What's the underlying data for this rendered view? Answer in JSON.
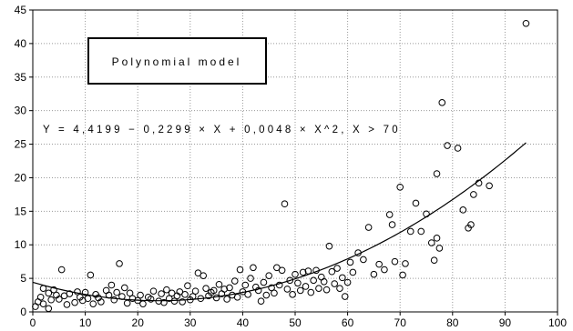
{
  "chart_data": {
    "type": "scatter",
    "title": "",
    "xlabel": "",
    "ylabel": "",
    "xlim": [
      0,
      100
    ],
    "ylim": [
      0,
      45
    ],
    "xticks": [
      0,
      10,
      20,
      30,
      40,
      50,
      60,
      70,
      80,
      90,
      100
    ],
    "yticks": [
      0,
      5,
      10,
      15,
      20,
      25,
      30,
      35,
      40,
      45
    ],
    "grid": true,
    "legend_box_text": "Polynomial model",
    "equation_text": "Y = 4,4199 − 0,2299 × X + 0,0048 × X^2, X > 70",
    "fit_curve": {
      "intercept": 4.4199,
      "linear": -0.2299,
      "quadratic": 0.0048,
      "x_range": [
        0,
        94
      ]
    },
    "series": [
      {
        "marker": "open-circle",
        "points": [
          [
            0.5,
            0.8
          ],
          [
            1,
            1.5
          ],
          [
            1.5,
            2.2
          ],
          [
            2,
            3.5
          ],
          [
            2,
            1.2
          ],
          [
            3,
            2.8
          ],
          [
            3,
            0.5
          ],
          [
            3.5,
            1.8
          ],
          [
            4,
            3.3
          ],
          [
            4.5,
            2.5
          ],
          [
            5,
            1.9
          ],
          [
            5.5,
            6.3
          ],
          [
            6,
            2.4
          ],
          [
            6.5,
            1.1
          ],
          [
            7,
            2.7
          ],
          [
            8,
            1.4
          ],
          [
            8.5,
            3.0
          ],
          [
            9,
            2.2
          ],
          [
            9.5,
            1.7
          ],
          [
            10,
            2.9
          ],
          [
            10.5,
            2.0
          ],
          [
            11,
            5.5
          ],
          [
            11.5,
            1.2
          ],
          [
            12,
            2.6
          ],
          [
            12.5,
            2.1
          ],
          [
            13,
            1.5
          ],
          [
            14,
            3.2
          ],
          [
            14.5,
            2.5
          ],
          [
            15,
            4.0
          ],
          [
            15.5,
            1.8
          ],
          [
            16,
            2.9
          ],
          [
            16.5,
            7.2
          ],
          [
            17,
            2.3
          ],
          [
            17.5,
            3.6
          ],
          [
            18,
            1.3
          ],
          [
            18.5,
            2.8
          ],
          [
            19,
            2.0
          ],
          [
            20,
            1.7
          ],
          [
            20.5,
            2.5
          ],
          [
            21,
            1.2
          ],
          [
            22,
            2.2
          ],
          [
            22.5,
            1.9
          ],
          [
            23,
            3.1
          ],
          [
            24,
            1.6
          ],
          [
            24.5,
            2.7
          ],
          [
            25,
            1.4
          ],
          [
            25.5,
            3.3
          ],
          [
            26,
            2.0
          ],
          [
            26.5,
            2.8
          ],
          [
            27,
            1.6
          ],
          [
            27.5,
            2.4
          ],
          [
            28,
            3.0
          ],
          [
            28.5,
            1.5
          ],
          [
            29,
            2.6
          ],
          [
            29.5,
            3.9
          ],
          [
            30,
            1.8
          ],
          [
            30.5,
            2.3
          ],
          [
            31,
            3.1
          ],
          [
            31.5,
            5.8
          ],
          [
            32,
            2.0
          ],
          [
            32.5,
            5.4
          ],
          [
            33,
            3.5
          ],
          [
            33.5,
            2.4
          ],
          [
            34,
            2.9
          ],
          [
            34.5,
            3.2
          ],
          [
            35,
            2.1
          ],
          [
            35.5,
            4.1
          ],
          [
            36,
            2.7
          ],
          [
            36.5,
            3.4
          ],
          [
            37,
            1.9
          ],
          [
            37.5,
            3.6
          ],
          [
            38,
            2.5
          ],
          [
            38.5,
            4.6
          ],
          [
            39,
            2.2
          ],
          [
            39.5,
            6.3
          ],
          [
            40,
            3.0
          ],
          [
            40.5,
            4.0
          ],
          [
            41,
            2.6
          ],
          [
            41.5,
            5.0
          ],
          [
            42,
            6.6
          ],
          [
            42.5,
            3.7
          ],
          [
            43,
            3.2
          ],
          [
            43.5,
            1.6
          ],
          [
            44,
            4.4
          ],
          [
            44.5,
            2.5
          ],
          [
            45,
            5.4
          ],
          [
            45.5,
            3.6
          ],
          [
            46,
            2.8
          ],
          [
            46.5,
            6.6
          ],
          [
            47,
            4.0
          ],
          [
            47.5,
            6.2
          ],
          [
            48,
            16.1
          ],
          [
            48.5,
            3.4
          ],
          [
            49,
            4.7
          ],
          [
            49.5,
            2.6
          ],
          [
            50,
            5.6
          ],
          [
            50.5,
            4.3
          ],
          [
            51,
            3.2
          ],
          [
            51.5,
            5.9
          ],
          [
            52,
            3.8
          ],
          [
            52.5,
            6.1
          ],
          [
            53,
            2.9
          ],
          [
            53.5,
            4.7
          ],
          [
            54,
            6.2
          ],
          [
            54.5,
            3.5
          ],
          [
            55,
            5.2
          ],
          [
            55.5,
            4.5
          ],
          [
            56,
            3.3
          ],
          [
            56.5,
            9.8
          ],
          [
            57,
            6.0
          ],
          [
            57.5,
            4.2
          ],
          [
            58,
            6.5
          ],
          [
            58.5,
            3.5
          ],
          [
            59,
            5.1
          ],
          [
            59.5,
            2.3
          ],
          [
            60,
            4.4
          ],
          [
            60.5,
            7.4
          ],
          [
            61,
            5.9
          ],
          [
            62,
            8.8
          ],
          [
            63,
            7.8
          ],
          [
            64,
            12.6
          ],
          [
            65,
            5.6
          ],
          [
            66,
            7.1
          ],
          [
            67,
            6.3
          ],
          [
            68,
            14.5
          ],
          [
            68.5,
            13.0
          ],
          [
            69,
            7.5
          ],
          [
            70,
            18.6
          ],
          [
            70.5,
            5.5
          ],
          [
            71,
            7.2
          ],
          [
            72,
            12.0
          ],
          [
            73,
            16.2
          ],
          [
            74,
            12.0
          ],
          [
            75,
            14.6
          ],
          [
            76,
            10.3
          ],
          [
            76.5,
            7.7
          ],
          [
            77,
            11.0
          ],
          [
            77.5,
            9.5
          ],
          [
            77,
            20.6
          ],
          [
            78,
            31.2
          ],
          [
            79,
            24.8
          ],
          [
            81,
            24.4
          ],
          [
            82,
            15.2
          ],
          [
            83,
            12.5
          ],
          [
            83.5,
            13.0
          ],
          [
            84,
            17.5
          ],
          [
            85,
            19.2
          ],
          [
            87,
            18.8
          ],
          [
            94,
            43.0
          ]
        ]
      }
    ]
  }
}
